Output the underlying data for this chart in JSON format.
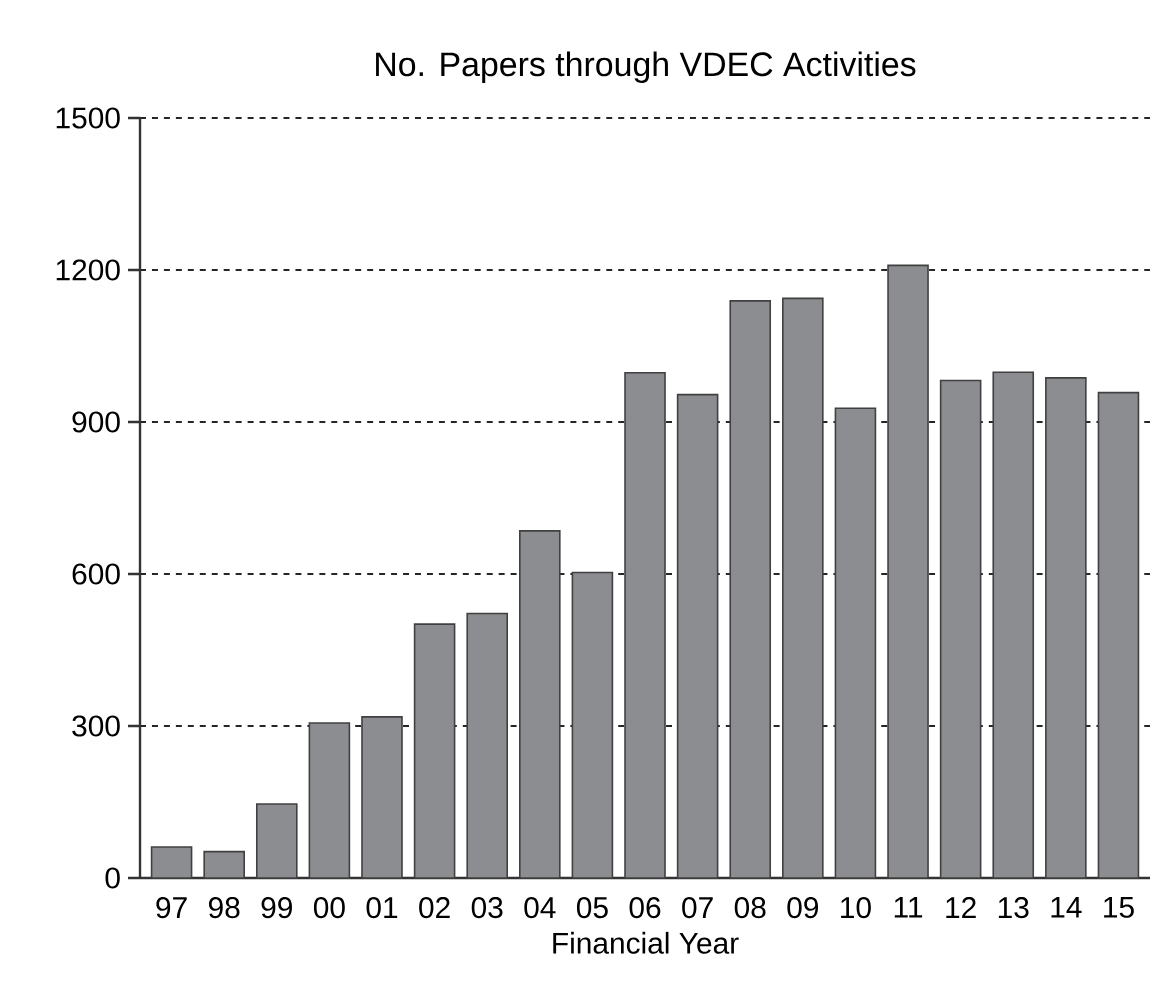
{
  "chart_data": {
    "type": "bar",
    "title": "No. Papers through VDEC Activities",
    "xlabel": "Financial Year",
    "categories": [
      "97",
      "98",
      "99",
      "00",
      "01",
      "02",
      "03",
      "04",
      "05",
      "06",
      "07",
      "08",
      "09",
      "10",
      "11",
      "12",
      "13",
      "14",
      "15"
    ],
    "values": [
      61,
      52,
      146,
      306,
      318,
      501,
      522,
      685,
      603,
      997,
      954,
      1139,
      1144,
      927,
      1209,
      982,
      998,
      987,
      958
    ],
    "color": "#8c8d91",
    "ylim": [
      0,
      1500
    ],
    "yticks": [
      0,
      300,
      600,
      900,
      1200,
      1500
    ],
    "grid": "y"
  }
}
